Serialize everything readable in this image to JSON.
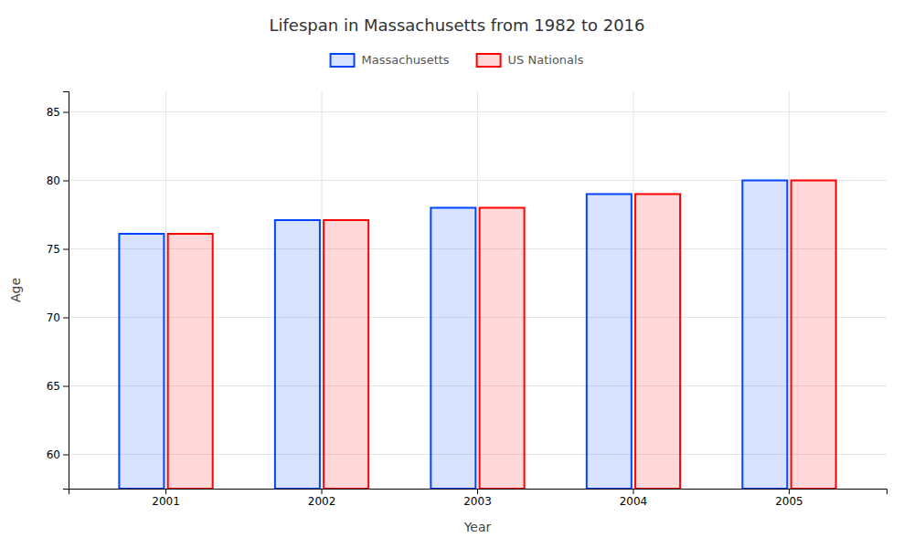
{
  "chart_data": {
    "type": "bar",
    "title": "Lifespan in Massachusetts from 1982 to 2016",
    "xlabel": "Year",
    "ylabel": "Age",
    "categories": [
      "2001",
      "2002",
      "2003",
      "2004",
      "2005"
    ],
    "series": [
      {
        "name": "Massachusetts",
        "color": "#0044ff",
        "values": [
          76.1,
          77.1,
          78.0,
          79.0,
          80.0
        ]
      },
      {
        "name": "US Nationals",
        "color": "#ff0000",
        "values": [
          76.1,
          77.1,
          78.0,
          79.0,
          80.0
        ]
      }
    ],
    "ylim": [
      57.5,
      86.5
    ],
    "yticks": [
      60,
      65,
      70,
      75,
      80,
      85
    ],
    "grid": true,
    "legend": "top"
  }
}
